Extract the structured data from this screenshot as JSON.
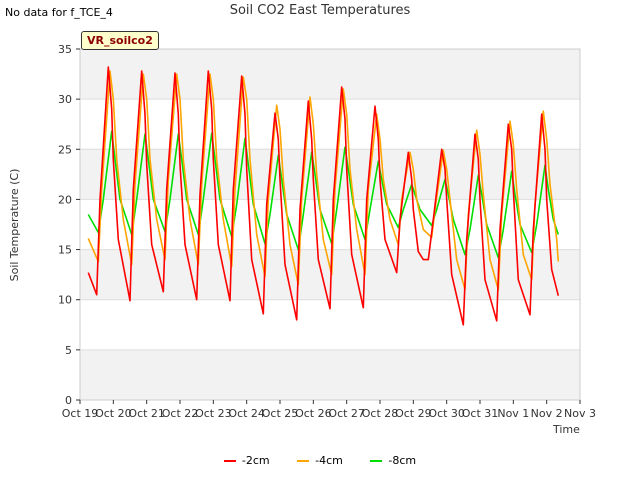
{
  "header": {
    "no_data_text": "No data for f_TCE_4",
    "title": "Soil CO2 East Temperatures",
    "badge": "VR_soilco2"
  },
  "chart_data": {
    "type": "line",
    "title": "Soil CO2 East Temperatures",
    "xlabel": "Time",
    "ylabel": "Soil Temperature (C)",
    "ylim": [
      0,
      35
    ],
    "yticks": [
      0,
      5,
      10,
      15,
      20,
      25,
      30,
      35
    ],
    "xlim": [
      0,
      15
    ],
    "xtick_labels": [
      "Oct 19",
      "Oct 20",
      "Oct 21",
      "Oct 22",
      "Oct 23",
      "Oct 24",
      "Oct 25",
      "Oct 26",
      "Oct 27",
      "Oct 28",
      "Oct 29",
      "Oct 30",
      "Oct 31",
      "Nov 1",
      "Nov 2",
      "Nov 3"
    ],
    "grid": true,
    "legend_position": "bottom",
    "series": [
      {
        "name": "-2cm",
        "color": "#ff0000",
        "x": [
          0.25,
          0.5,
          0.6,
          0.85,
          0.95,
          1.0,
          1.15,
          1.5,
          1.6,
          1.85,
          1.95,
          2.0,
          2.15,
          2.5,
          2.6,
          2.85,
          2.95,
          3.0,
          3.15,
          3.5,
          3.6,
          3.85,
          3.95,
          4.0,
          4.15,
          4.5,
          4.6,
          4.85,
          4.95,
          5.0,
          5.15,
          5.5,
          5.6,
          5.85,
          5.95,
          6.0,
          6.15,
          6.5,
          6.6,
          6.85,
          6.95,
          7.0,
          7.15,
          7.5,
          7.6,
          7.85,
          7.95,
          8.0,
          8.15,
          8.5,
          8.6,
          8.85,
          8.95,
          9.0,
          9.15,
          9.5,
          9.6,
          9.85,
          9.95,
          10.0,
          10.15,
          10.3,
          10.45,
          10.6,
          10.85,
          10.95,
          11.0,
          11.15,
          11.5,
          11.6,
          11.85,
          11.95,
          12.0,
          12.15,
          12.5,
          12.6,
          12.85,
          12.95,
          13.0,
          13.15,
          13.5,
          13.6,
          13.85,
          13.95,
          14.0,
          14.15,
          14.35
        ],
        "y": [
          12.7,
          10.5,
          20.0,
          33.2,
          29.0,
          24.0,
          16.0,
          9.9,
          21.0,
          32.8,
          28.5,
          23.5,
          15.5,
          10.8,
          21.0,
          32.6,
          28.5,
          23.5,
          15.5,
          10.0,
          20.5,
          32.8,
          29.0,
          24.0,
          15.5,
          9.9,
          21.0,
          32.3,
          28.5,
          23.0,
          14.0,
          8.6,
          19.5,
          28.6,
          26.0,
          22.0,
          13.5,
          8.0,
          19.0,
          29.8,
          26.0,
          22.0,
          14.0,
          9.1,
          20.0,
          31.2,
          28.0,
          23.0,
          14.5,
          9.2,
          20.0,
          29.3,
          26.0,
          22.0,
          16.0,
          12.7,
          18.0,
          24.7,
          22.0,
          19.0,
          14.8,
          14.0,
          14.0,
          18.0,
          25.0,
          23.0,
          20.0,
          12.5,
          7.5,
          16.0,
          26.5,
          24.0,
          20.0,
          12.0,
          7.9,
          17.0,
          27.5,
          25.0,
          21.0,
          12.0,
          8.5,
          17.0,
          28.5,
          25.0,
          20.0,
          13.0,
          10.4
        ]
      },
      {
        "name": "-4cm",
        "color": "#ffa500",
        "x": [
          0.25,
          0.55,
          0.65,
          0.9,
          1.0,
          1.1,
          1.3,
          1.55,
          1.65,
          1.9,
          2.0,
          2.1,
          2.3,
          2.55,
          2.65,
          2.9,
          3.0,
          3.1,
          3.3,
          3.55,
          3.65,
          3.9,
          4.0,
          4.1,
          4.3,
          4.55,
          4.65,
          4.9,
          5.0,
          5.1,
          5.3,
          5.55,
          5.65,
          5.9,
          6.0,
          6.1,
          6.3,
          6.55,
          6.65,
          6.9,
          7.0,
          7.1,
          7.3,
          7.55,
          7.65,
          7.9,
          8.0,
          8.1,
          8.3,
          8.55,
          8.65,
          8.9,
          9.0,
          9.1,
          9.3,
          9.55,
          9.65,
          9.9,
          10.0,
          10.1,
          10.3,
          10.55,
          10.65,
          10.9,
          11.0,
          11.1,
          11.3,
          11.55,
          11.65,
          11.9,
          12.0,
          12.1,
          12.3,
          12.55,
          12.65,
          12.9,
          13.0,
          13.1,
          13.3,
          13.55,
          13.65,
          13.9,
          14.0,
          14.1,
          14.3,
          14.35
        ],
        "y": [
          16.1,
          13.8,
          21.0,
          32.8,
          30.0,
          24.0,
          18.0,
          13.5,
          21.5,
          32.5,
          30.0,
          24.0,
          18.0,
          14.0,
          22.0,
          32.5,
          30.0,
          24.0,
          18.0,
          13.5,
          21.5,
          32.5,
          30.0,
          24.0,
          18.0,
          13.3,
          21.0,
          32.2,
          30.0,
          24.0,
          16.5,
          12.3,
          20.0,
          29.4,
          27.0,
          22.0,
          15.5,
          11.5,
          20.0,
          30.2,
          27.5,
          22.5,
          16.0,
          12.5,
          21.0,
          31.0,
          28.5,
          23.0,
          17.0,
          12.5,
          21.0,
          28.5,
          26.0,
          22.0,
          18.0,
          15.5,
          20.0,
          24.7,
          23.0,
          20.0,
          17.0,
          16.2,
          19.0,
          24.9,
          23.0,
          20.0,
          14.0,
          11.0,
          18.5,
          26.9,
          24.5,
          20.5,
          14.0,
          11.0,
          18.5,
          27.8,
          25.5,
          21.0,
          14.5,
          12.0,
          19.5,
          28.8,
          26.0,
          21.5,
          16.0,
          13.8
        ]
      },
      {
        "name": "-8cm",
        "color": "#00e000",
        "x": [
          0.25,
          0.55,
          0.7,
          0.95,
          1.05,
          1.2,
          1.55,
          1.7,
          1.95,
          2.05,
          2.2,
          2.55,
          2.7,
          2.95,
          3.05,
          3.2,
          3.55,
          3.7,
          3.95,
          4.05,
          4.2,
          4.55,
          4.7,
          4.95,
          5.05,
          5.2,
          5.55,
          5.7,
          5.95,
          6.05,
          6.2,
          6.55,
          6.7,
          6.95,
          7.05,
          7.2,
          7.55,
          7.7,
          7.95,
          8.05,
          8.2,
          8.55,
          8.7,
          8.95,
          9.05,
          9.2,
          9.55,
          9.7,
          9.95,
          10.05,
          10.2,
          10.55,
          10.7,
          10.95,
          11.05,
          11.2,
          11.55,
          11.7,
          11.95,
          12.05,
          12.2,
          12.55,
          12.7,
          12.95,
          13.05,
          13.2,
          13.55,
          13.7,
          13.95,
          14.05,
          14.2,
          14.35
        ],
        "y": [
          18.5,
          16.7,
          20.0,
          26.8,
          24.0,
          20.0,
          16.5,
          20.0,
          26.5,
          24.0,
          20.0,
          16.8,
          20.0,
          26.5,
          24.0,
          20.0,
          16.5,
          20.0,
          26.6,
          24.0,
          20.0,
          16.3,
          19.5,
          26.1,
          23.5,
          19.5,
          15.6,
          18.5,
          24.4,
          22.0,
          18.5,
          15.0,
          18.5,
          24.7,
          22.5,
          19.0,
          15.6,
          19.0,
          25.2,
          23.0,
          19.5,
          16.0,
          19.0,
          23.8,
          22.0,
          19.5,
          17.2,
          19.0,
          21.5,
          20.5,
          19.0,
          17.4,
          19.0,
          22.0,
          20.5,
          18.0,
          14.5,
          17.0,
          22.4,
          20.5,
          17.5,
          14.2,
          17.0,
          22.8,
          20.5,
          17.5,
          14.7,
          17.5,
          23.4,
          21.0,
          18.0,
          16.5
        ]
      }
    ]
  }
}
